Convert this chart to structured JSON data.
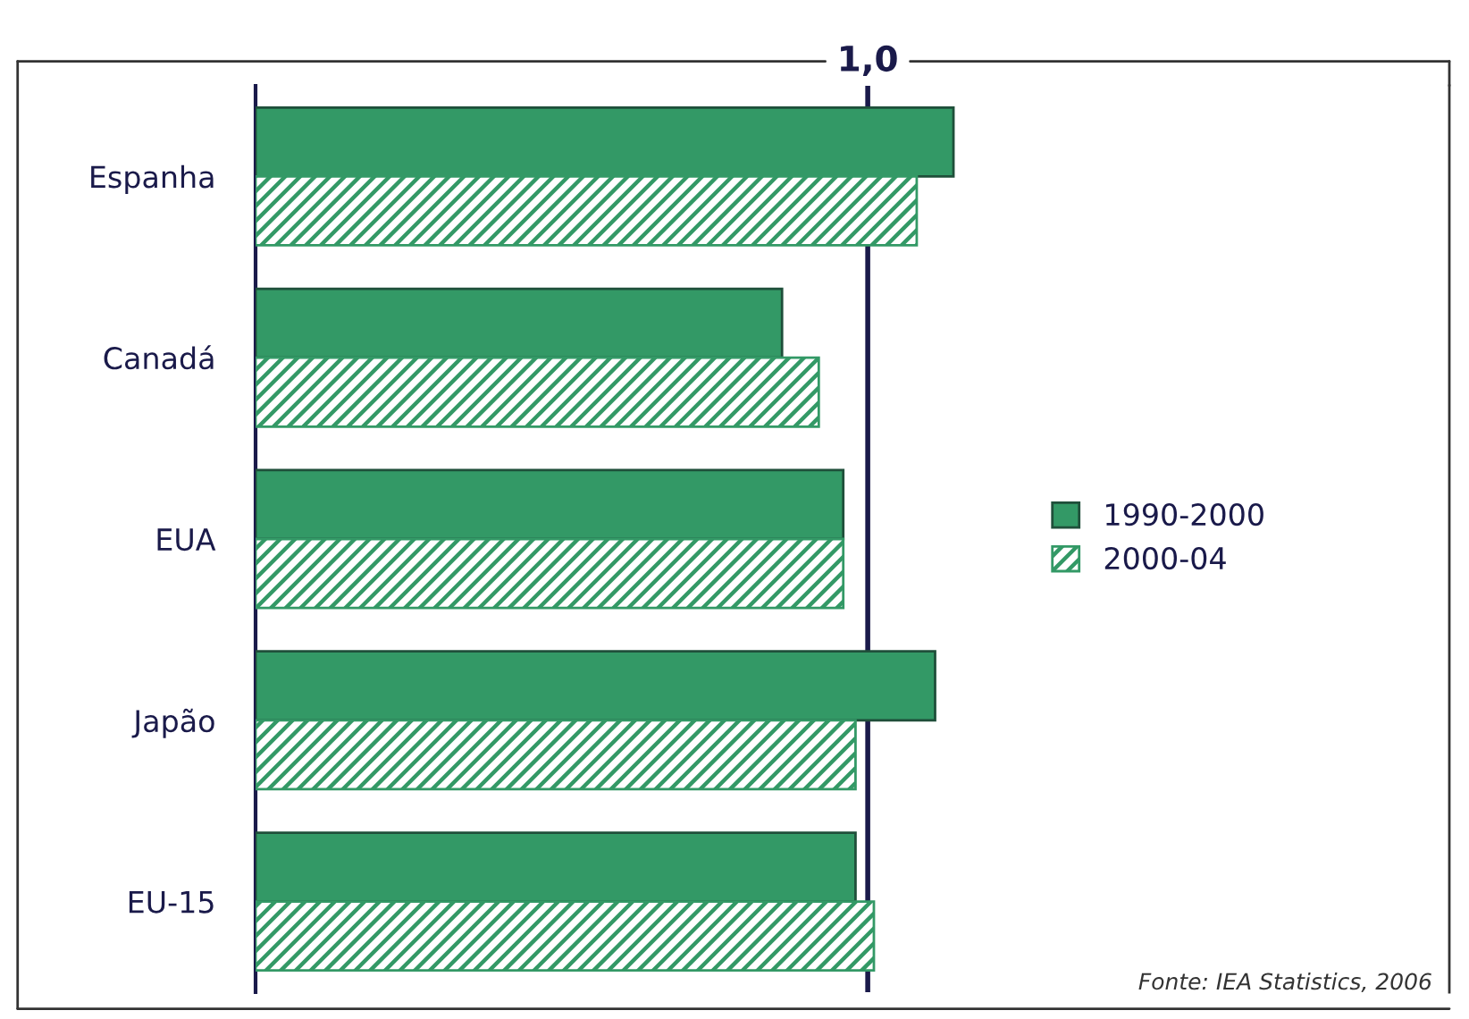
{
  "chart_data": {
    "type": "bar",
    "orientation": "horizontal",
    "categories": [
      "Espanha",
      "Canadá",
      "EUA",
      "Japão",
      "EU-15"
    ],
    "series": [
      {
        "name": "1990-2000",
        "color": "#339966",
        "values": [
          1.14,
          0.86,
          0.96,
          1.11,
          0.98
        ]
      },
      {
        "name": "2000-04",
        "color": "#339966",
        "values": [
          1.08,
          0.92,
          0.96,
          0.98,
          1.01
        ]
      }
    ],
    "xlim": [
      0,
      1.95
    ],
    "xticks": [
      {
        "value": 1,
        "label": "1,0"
      }
    ],
    "ref_lines": [
      {
        "axis": "x",
        "value": 1,
        "color": "#1a1a4a"
      }
    ],
    "legend": "right",
    "annotations": [
      "Fonte: IEA Statistics, 2006"
    ]
  }
}
